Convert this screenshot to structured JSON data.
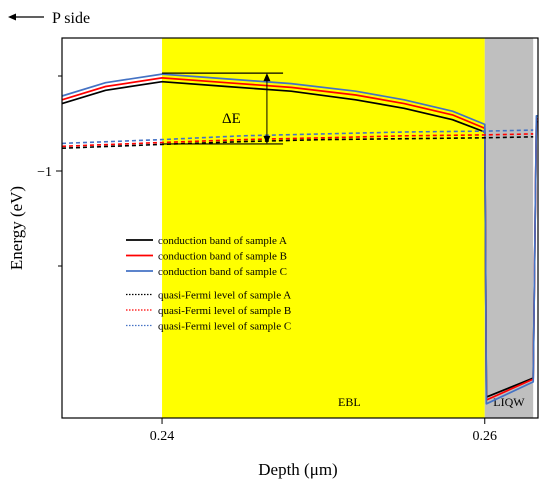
{
  "chart_data": {
    "type": "line",
    "xlabel": "Depth (μm)",
    "ylabel": "Energy (eV)",
    "xlim": [
      0.2338,
      0.2633
    ],
    "ylim": [
      -1.26,
      -0.86
    ],
    "x_ticks": [
      {
        "value": 0.24,
        "label": "0.24"
      },
      {
        "value": 0.26,
        "label": "0.26"
      }
    ],
    "y_ticks": [
      {
        "value": -1.0,
        "label": "−1"
      }
    ],
    "regions": [
      {
        "name": "EBL",
        "x": [
          0.24,
          0.26
        ],
        "color": "#ffff00"
      },
      {
        "name": "LIQW",
        "x": [
          0.26,
          0.263
        ],
        "color": "#bfbfbf"
      }
    ],
    "top_label": "P side",
    "annotation": {
      "label": "ΔE",
      "x": 0.2465,
      "y_top": -0.897,
      "y_bottom": -0.9715
    },
    "legend": {
      "position": "center-left"
    },
    "series": [
      {
        "name": "conduction band of sample A",
        "color": "#000000",
        "style": "solid",
        "x": [
          0.2338,
          0.2365,
          0.24,
          0.244,
          0.248,
          0.252,
          0.255,
          0.258,
          0.26,
          0.2601,
          0.263,
          0.2632,
          0.2633
        ],
        "y": [
          -0.929,
          -0.915,
          -0.906,
          -0.911,
          -0.916,
          -0.925,
          -0.934,
          -0.946,
          -0.959,
          -1.238,
          -1.218,
          -0.948,
          -0.948
        ]
      },
      {
        "name": "conduction band of sample B",
        "color": "#ff0000",
        "style": "solid",
        "x": [
          0.2338,
          0.2365,
          0.24,
          0.244,
          0.248,
          0.252,
          0.255,
          0.258,
          0.26,
          0.2601,
          0.263,
          0.2632,
          0.2633
        ],
        "y": [
          -0.925,
          -0.911,
          -0.902,
          -0.907,
          -0.912,
          -0.92,
          -0.929,
          -0.941,
          -0.955,
          -1.241,
          -1.219,
          -0.945,
          -0.945
        ]
      },
      {
        "name": "conduction band of sample C",
        "color": "#4472c4",
        "style": "solid",
        "x": [
          0.2338,
          0.2365,
          0.24,
          0.244,
          0.248,
          0.252,
          0.255,
          0.258,
          0.26,
          0.2601,
          0.263,
          0.2632,
          0.2633
        ],
        "y": [
          -0.921,
          -0.907,
          -0.898,
          -0.903,
          -0.908,
          -0.916,
          -0.925,
          -0.937,
          -0.951,
          -1.245,
          -1.222,
          -0.942,
          -0.942
        ]
      },
      {
        "name": "quasi-Fermi level of sample A",
        "color": "#000000",
        "style": "dotted",
        "x": [
          0.2338,
          0.24,
          0.245,
          0.25,
          0.255,
          0.26,
          0.263
        ],
        "y": [
          -0.976,
          -0.972,
          -0.969,
          -0.967,
          -0.966,
          -0.965,
          -0.964
        ]
      },
      {
        "name": "quasi-Fermi level of sample B",
        "color": "#ff0000",
        "style": "dotted",
        "x": [
          0.2338,
          0.24,
          0.245,
          0.25,
          0.255,
          0.26,
          0.263
        ],
        "y": [
          -0.974,
          -0.97,
          -0.967,
          -0.965,
          -0.963,
          -0.962,
          -0.961
        ]
      },
      {
        "name": "quasi-Fermi level of sample C",
        "color": "#4472c4",
        "style": "dotted",
        "x": [
          0.2338,
          0.24,
          0.245,
          0.25,
          0.255,
          0.26,
          0.263
        ],
        "y": [
          -0.971,
          -0.967,
          -0.963,
          -0.961,
          -0.959,
          -0.958,
          -0.957
        ]
      }
    ]
  }
}
